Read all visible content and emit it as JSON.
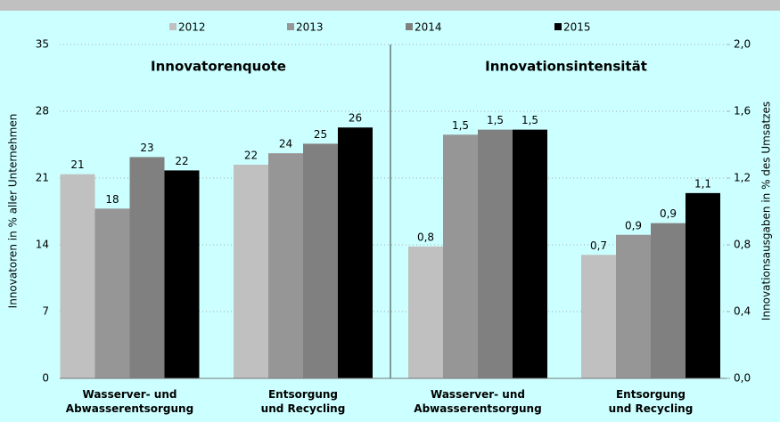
{
  "legend_position": "top",
  "chart_data": [
    {
      "type": "bar",
      "title": "Innovatorenquote",
      "ylabel": "Innovatoren in % aller Unternehmen",
      "categories": [
        "Wasserver- und\nAbwasserentsorgung",
        "Entsorgung\nund Recycling"
      ],
      "ylim": [
        0,
        35
      ],
      "yticks": [
        0,
        7,
        14,
        21,
        28,
        35
      ],
      "grid": true,
      "series": [
        {
          "name": "2012",
          "color": "#c0c0c0",
          "values": [
            21.4,
            22.4
          ],
          "value_labels": [
            "21",
            "22"
          ]
        },
        {
          "name": "2013",
          "color": "#969696",
          "values": [
            17.8,
            23.6
          ],
          "value_labels": [
            "18",
            "24"
          ]
        },
        {
          "name": "2014",
          "color": "#808080",
          "values": [
            23.2,
            24.6
          ],
          "value_labels": [
            "23",
            "25"
          ]
        },
        {
          "name": "2015",
          "color": "#000000",
          "values": [
            21.8,
            26.3
          ],
          "value_labels": [
            "22",
            "26"
          ]
        }
      ]
    },
    {
      "type": "bar",
      "title": "Innovationsintensität",
      "y2label": "Innovationsausgaben in % des Umsatzes",
      "categories": [
        "Wasserver- und\nAbwasserentsorgung",
        "Entsorgung\nund Recycling"
      ],
      "y2lim": [
        0,
        2
      ],
      "y2ticks": [
        {
          "value": 0,
          "label": "0,0"
        },
        {
          "value": 0.4,
          "label": "0,4"
        },
        {
          "value": 0.8,
          "label": "0,8"
        },
        {
          "value": 1.2,
          "label": "1,2"
        },
        {
          "value": 1.6,
          "label": "1,6"
        },
        {
          "value": 2,
          "label": "2,0"
        }
      ],
      "series": [
        {
          "axis": "y2",
          "color": "#c0c0c0",
          "values": [
            0.79,
            0.74
          ],
          "value_labels": [
            "0,8",
            "0,7"
          ]
        },
        {
          "axis": "y2",
          "color": "#969696",
          "values": [
            1.46,
            0.86
          ],
          "value_labels": [
            "1,5",
            "0,9"
          ]
        },
        {
          "axis": "y2",
          "color": "#808080",
          "values": [
            1.49,
            0.93
          ],
          "value_labels": [
            "1,5",
            "0,9"
          ]
        },
        {
          "axis": "y2",
          "color": "#000000",
          "values": [
            1.49,
            1.11
          ],
          "value_labels": [
            "1,5",
            "1,1"
          ]
        }
      ]
    }
  ]
}
